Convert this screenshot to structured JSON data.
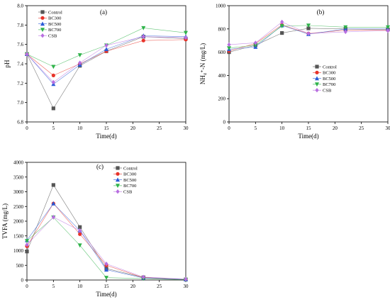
{
  "series_styles": [
    {
      "color": "#555555",
      "marker": "square"
    },
    {
      "color": "#e8332a",
      "marker": "circle"
    },
    {
      "color": "#2a5bd7",
      "marker": "triangle-up"
    },
    {
      "color": "#2fb34a",
      "marker": "triangle-down"
    },
    {
      "color": "#b86ee0",
      "marker": "diamond"
    }
  ],
  "chart_data": [
    {
      "type": "line",
      "panel_label": "(a)",
      "xlabel": "Time(d)",
      "ylabel": "pH",
      "xlim": [
        0,
        30
      ],
      "ylim": [
        6.8,
        8.0
      ],
      "xticks": [
        "0",
        "5",
        "10",
        "15",
        "20",
        "25",
        "30"
      ],
      "yticks": [
        "6.8",
        "7.0",
        "7.2",
        "7.4",
        "7.6",
        "7.8",
        "8.0"
      ],
      "x": [
        0,
        5,
        10,
        15,
        22,
        30
      ],
      "legend_position": "top-left",
      "series": [
        {
          "name": "Control",
          "values": [
            7.5,
            6.94,
            7.38,
            7.53,
            7.68,
            7.66
          ]
        },
        {
          "name": "BC300",
          "values": [
            7.5,
            7.28,
            7.4,
            7.53,
            7.64,
            7.65
          ]
        },
        {
          "name": "BC500",
          "values": [
            7.5,
            7.19,
            7.39,
            7.55,
            7.69,
            7.68
          ]
        },
        {
          "name": "BC700",
          "values": [
            7.5,
            7.37,
            7.49,
            7.59,
            7.77,
            7.72
          ]
        },
        {
          "name": "CSB",
          "values": [
            7.5,
            7.21,
            7.41,
            7.59,
            7.68,
            7.67
          ]
        }
      ]
    },
    {
      "type": "line",
      "panel_label": "(b)",
      "xlabel": "Time(d)",
      "ylabel": "NH₄⁺-N (mg/L)",
      "xlim": [
        0,
        30
      ],
      "ylim": [
        0,
        1000
      ],
      "xticks": [
        "0",
        "5",
        "10",
        "15",
        "20",
        "25",
        "30"
      ],
      "yticks": [
        "0",
        "200",
        "400",
        "600",
        "800",
        "1000"
      ],
      "x": [
        0,
        5,
        10,
        15,
        22,
        30
      ],
      "legend_position": "middle-right",
      "series": [
        {
          "name": "Control",
          "values": [
            600,
            660,
            765,
            805,
            800,
            795
          ]
        },
        {
          "name": "BC300",
          "values": [
            610,
            675,
            835,
            760,
            790,
            790
          ]
        },
        {
          "name": "BC500",
          "values": [
            625,
            645,
            830,
            755,
            800,
            800
          ]
        },
        {
          "name": "BC700",
          "values": [
            635,
            660,
            825,
            830,
            815,
            815
          ]
        },
        {
          "name": "CSB",
          "values": [
            665,
            680,
            860,
            760,
            775,
            785
          ]
        }
      ]
    },
    {
      "type": "line",
      "panel_label": "(c)",
      "xlabel": "Time(d)",
      "ylabel": "TVFA (mg/L)",
      "xlim": [
        0,
        30
      ],
      "ylim": [
        0,
        4000
      ],
      "xticks": [
        "0",
        "5",
        "10",
        "15",
        "20",
        "25",
        "30"
      ],
      "yticks": [
        "0",
        "500",
        "1000",
        "1500",
        "2000",
        "2500",
        "3000",
        "3500",
        "4000"
      ],
      "x": [
        0,
        5,
        10,
        15,
        22,
        30
      ],
      "legend_position": "top-center",
      "series": [
        {
          "name": "Control",
          "values": [
            970,
            3230,
            1800,
            390,
            90,
            20
          ]
        },
        {
          "name": "BC300",
          "values": [
            1150,
            2600,
            1560,
            500,
            80,
            20
          ]
        },
        {
          "name": "BC500",
          "values": [
            1350,
            2600,
            1680,
            350,
            70,
            20
          ]
        },
        {
          "name": "BC700",
          "values": [
            1330,
            2130,
            1180,
            80,
            50,
            10
          ]
        },
        {
          "name": "CSB",
          "values": [
            1200,
            2140,
            1680,
            550,
            100,
            30
          ]
        }
      ]
    }
  ]
}
